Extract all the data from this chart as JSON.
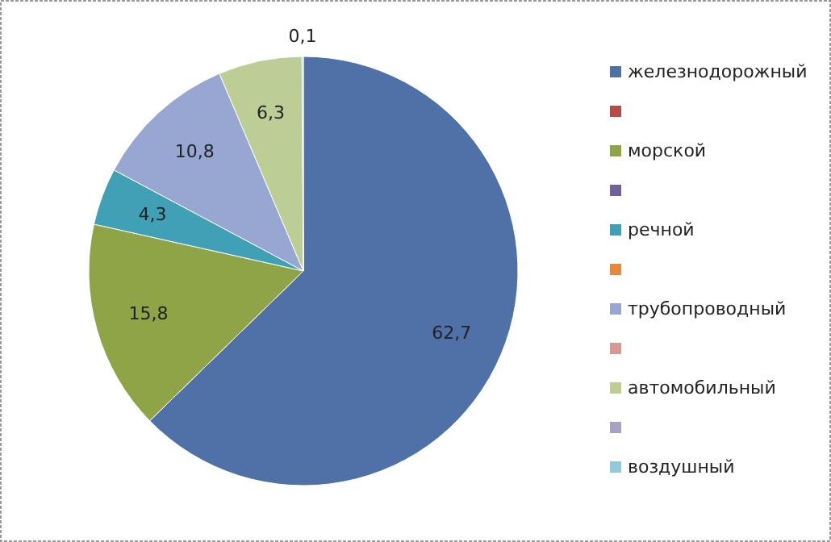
{
  "chart_data": {
    "type": "pie",
    "categories": [
      "железнодорожный",
      null,
      "морской",
      null,
      "речной",
      null,
      "трубопроводный",
      null,
      "автомобильный",
      null,
      "воздушный"
    ],
    "values": [
      62.7,
      0,
      15.8,
      0,
      4.3,
      0,
      10.8,
      0,
      6.3,
      0,
      0.1
    ],
    "colors": [
      "#4f71a8",
      "#b84a47",
      "#8fa347",
      "#7160a0",
      "#3fa0b6",
      "#e8883a",
      "#97a7d1",
      "#d89896",
      "#bccd96",
      "#a9a0c6",
      "#8fcbd9"
    ],
    "value_labels": [
      "62,7",
      null,
      "15,8",
      null,
      "4,3",
      null,
      "10,8",
      null,
      "6,3",
      null,
      "0,1"
    ],
    "legend": "right"
  }
}
